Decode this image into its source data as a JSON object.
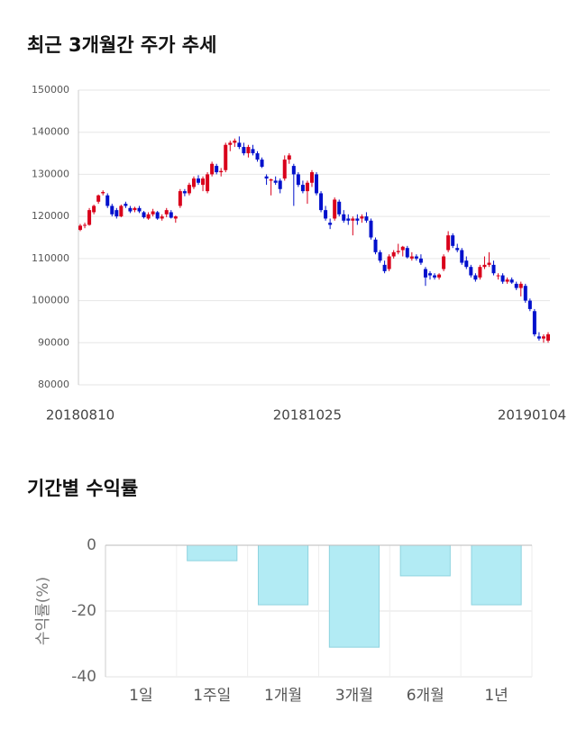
{
  "chart_data": [
    {
      "type": "candlestick",
      "title": "최근 3개월간 주가 추세",
      "up_color": "#d9001b",
      "down_color": "#0010cc",
      "ylim": [
        80000,
        150000
      ],
      "yticks": [
        80000,
        90000,
        100000,
        110000,
        120000,
        130000,
        140000,
        150000
      ],
      "grid": true,
      "categories": [
        "20180810",
        null,
        null,
        null,
        null,
        null,
        null,
        null,
        null,
        null,
        null,
        null,
        null,
        null,
        null,
        null,
        null,
        null,
        null,
        null,
        null,
        null,
        null,
        null,
        null,
        null,
        null,
        null,
        null,
        null,
        null,
        null,
        null,
        null,
        null,
        null,
        null,
        null,
        null,
        null,
        null,
        null,
        null,
        null,
        null,
        null,
        null,
        null,
        null,
        null,
        "20181025",
        null,
        null,
        null,
        null,
        null,
        null,
        null,
        null,
        null,
        null,
        null,
        null,
        null,
        null,
        null,
        null,
        null,
        null,
        null,
        null,
        null,
        null,
        null,
        null,
        null,
        null,
        null,
        null,
        null,
        null,
        null,
        null,
        null,
        null,
        null,
        null,
        null,
        null,
        null,
        null,
        null,
        null,
        null,
        null,
        null,
        null,
        null,
        null,
        null,
        null,
        null,
        null,
        "20190104"
      ],
      "ohlc": [
        [
          116800,
          118200,
          116500,
          117800
        ],
        [
          117800,
          118500,
          117200,
          118000
        ],
        [
          118000,
          122000,
          117800,
          121500
        ],
        [
          121000,
          122800,
          120500,
          122500
        ],
        [
          123500,
          125200,
          123000,
          125000
        ],
        [
          125500,
          126200,
          125000,
          125800
        ],
        [
          125000,
          125500,
          122000,
          122500
        ],
        [
          122500,
          123000,
          120000,
          120500
        ],
        [
          121500,
          122000,
          119500,
          120000
        ],
        [
          120000,
          122800,
          119800,
          122500
        ],
        [
          123000,
          123500,
          122000,
          122500
        ],
        [
          122000,
          122500,
          120800,
          121200
        ],
        [
          121500,
          122300,
          121000,
          122000
        ],
        [
          122000,
          122500,
          120800,
          121200
        ],
        [
          121000,
          121300,
          119500,
          119800
        ],
        [
          119500,
          121000,
          119200,
          120500
        ],
        [
          120500,
          121800,
          120000,
          121200
        ],
        [
          121000,
          121300,
          119200,
          119500
        ],
        [
          119500,
          120500,
          119000,
          120000
        ],
        [
          120500,
          122000,
          119800,
          121500
        ],
        [
          121000,
          121500,
          119500,
          119700
        ],
        [
          119500,
          120200,
          118500,
          120000
        ],
        [
          122500,
          126500,
          122000,
          126000
        ],
        [
          126000,
          126500,
          124800,
          125500
        ],
        [
          125500,
          128000,
          125000,
          127500
        ],
        [
          127000,
          129500,
          126500,
          129000
        ],
        [
          129000,
          129800,
          127500,
          128000
        ],
        [
          127500,
          129500,
          126000,
          129000
        ],
        [
          126000,
          130500,
          125500,
          130000
        ],
        [
          130000,
          133000,
          129500,
          132500
        ],
        [
          132000,
          132500,
          130000,
          130500
        ],
        [
          130500,
          131500,
          129500,
          130800
        ],
        [
          131000,
          137500,
          130500,
          137000
        ],
        [
          137000,
          138000,
          135500,
          137500
        ],
        [
          137500,
          138500,
          136500,
          138000
        ],
        [
          137500,
          139000,
          136000,
          136500
        ],
        [
          136500,
          137500,
          134500,
          135000
        ],
        [
          135000,
          137000,
          134000,
          136500
        ],
        [
          136000,
          137000,
          134500,
          135000
        ],
        [
          135000,
          135500,
          133000,
          133500
        ],
        [
          133500,
          134000,
          131500,
          131800
        ],
        [
          129500,
          130000,
          127500,
          129000
        ],
        [
          128500,
          129000,
          125000,
          128800
        ],
        [
          128500,
          129500,
          127500,
          128000
        ],
        [
          128500,
          129000,
          125500,
          126500
        ],
        [
          129000,
          134500,
          128500,
          133500
        ],
        [
          133500,
          135000,
          132500,
          134500
        ],
        [
          132000,
          132500,
          122500,
          130000
        ],
        [
          130000,
          130500,
          127000,
          127500
        ],
        [
          127500,
          128500,
          125500,
          126000
        ],
        [
          126000,
          128500,
          123000,
          128000
        ],
        [
          128000,
          131000,
          127000,
          130500
        ],
        [
          130000,
          130500,
          125000,
          125500
        ],
        [
          125500,
          126000,
          121000,
          121500
        ],
        [
          121500,
          122500,
          119000,
          119500
        ],
        [
          118500,
          119500,
          117000,
          118000
        ],
        [
          119500,
          124500,
          119000,
          124000
        ],
        [
          123500,
          124000,
          120000,
          120500
        ],
        [
          120500,
          121500,
          118500,
          119000
        ],
        [
          119500,
          120500,
          118000,
          119000
        ],
        [
          119000,
          120000,
          115500,
          119500
        ],
        [
          119500,
          120500,
          118000,
          119000
        ],
        [
          119500,
          120500,
          118500,
          120000
        ],
        [
          120000,
          121000,
          118500,
          119000
        ],
        [
          119000,
          119500,
          114500,
          115000
        ],
        [
          114500,
          115000,
          111000,
          111500
        ],
        [
          111500,
          112000,
          109000,
          109500
        ],
        [
          108500,
          109500,
          106500,
          107000
        ],
        [
          107500,
          111000,
          107000,
          110500
        ],
        [
          110500,
          112000,
          110000,
          111500
        ],
        [
          111500,
          113500,
          111000,
          111800
        ],
        [
          112000,
          113000,
          110500,
          112800
        ],
        [
          112500,
          113000,
          110000,
          110300
        ],
        [
          110000,
          111500,
          109500,
          110500
        ],
        [
          110500,
          111000,
          109500,
          110000
        ],
        [
          110000,
          111000,
          108500,
          109000
        ],
        [
          107500,
          108000,
          103500,
          105500
        ],
        [
          106500,
          107000,
          105000,
          106000
        ],
        [
          106000,
          106500,
          105000,
          105500
        ],
        [
          105500,
          106500,
          105000,
          106200
        ],
        [
          107500,
          111000,
          107000,
          110500
        ],
        [
          112000,
          116500,
          111500,
          115500
        ],
        [
          115500,
          116000,
          112500,
          113000
        ],
        [
          112500,
          113500,
          111500,
          112000
        ],
        [
          112000,
          112500,
          108500,
          109000
        ],
        [
          109500,
          110500,
          107500,
          108000
        ],
        [
          108000,
          108500,
          105500,
          106000
        ],
        [
          106000,
          106500,
          104500,
          105000
        ],
        [
          105500,
          108500,
          105000,
          108000
        ],
        [
          108000,
          110500,
          107500,
          108500
        ],
        [
          108500,
          111500,
          108000,
          109000
        ],
        [
          108500,
          109500,
          106000,
          106500
        ],
        [
          106000,
          106500,
          105000,
          106000
        ],
        [
          106000,
          106500,
          104000,
          104500
        ],
        [
          104500,
          105500,
          104000,
          105000
        ],
        [
          105000,
          105500,
          104000,
          104300
        ],
        [
          104000,
          104500,
          102500,
          103000
        ],
        [
          103000,
          104500,
          101000,
          104000
        ],
        [
          103500,
          104000,
          99500,
          100000
        ],
        [
          100000,
          100500,
          97500,
          98000
        ],
        [
          97500,
          98000,
          91500,
          92000
        ],
        [
          91500,
          92500,
          90500,
          91000
        ],
        [
          91000,
          92000,
          90000,
          91500
        ],
        [
          90500,
          92500,
          90000,
          92000
        ]
      ]
    },
    {
      "type": "bar",
      "title": "기간별 수익률",
      "y_label": "수익률(%)",
      "categories": [
        "1일",
        "1주일",
        "1개월",
        "3개월",
        "6개월",
        "1년"
      ],
      "values": [
        0,
        -4.7,
        -18.1,
        -31,
        -9.3,
        -18.1
      ],
      "color": "#b2ebf4",
      "edge_color": "#8fd3df",
      "ylim": [
        -40,
        0
      ],
      "yticks": [
        0,
        -20,
        -40
      ],
      "grid": true
    }
  ]
}
